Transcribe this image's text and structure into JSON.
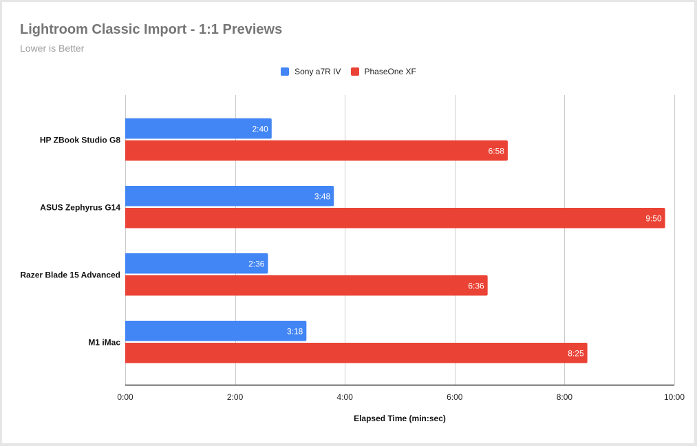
{
  "chart_data": {
    "type": "bar",
    "orientation": "horizontal",
    "title": "Lightroom Classic Import - 1:1 Previews",
    "subtitle": "Lower is Better",
    "xlabel": "Elapsed Time (min:sec)",
    "ylabel": "",
    "xlim": [
      0,
      10
    ],
    "x_unit": "minutes",
    "x_ticks": [
      0,
      2,
      4,
      6,
      8,
      10
    ],
    "x_tick_labels": [
      "0:00",
      "2:00",
      "4:00",
      "6:00",
      "8:00",
      "10:00"
    ],
    "grid": true,
    "legend_position": "top",
    "categories": [
      "HP ZBook Studio G8",
      "ASUS Zephyrus G14",
      "Razer Blade 15 Advanced",
      "M1 iMac"
    ],
    "series": [
      {
        "name": "Sony a7R IV",
        "color": "#4285f4",
        "values": [
          2.6667,
          3.8,
          2.6,
          3.3
        ],
        "labels": [
          "2:40",
          "3:48",
          "2:36",
          "3:18"
        ]
      },
      {
        "name": "PhaseOne XF",
        "color": "#ea4335",
        "values": [
          6.9667,
          9.8333,
          6.6,
          8.4167
        ],
        "labels": [
          "6:58",
          "9:50",
          "6:36",
          "8:25"
        ]
      }
    ]
  }
}
